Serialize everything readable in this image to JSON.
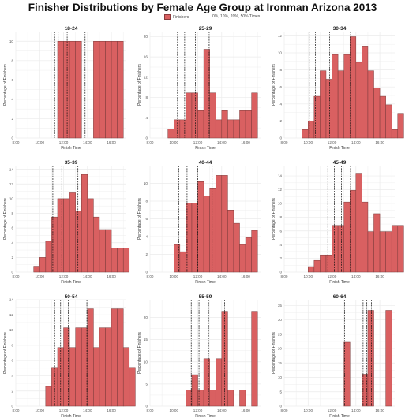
{
  "title": "Finisher Distributions by Female Age Group at Ironman Arizona 2013",
  "legend": {
    "finishers_label": "Finishers",
    "times_label": "0%, 10%, 20%, 50% Times"
  },
  "colors": {
    "bar_fill": "#d96061",
    "bar_stroke": "#7a3a3a",
    "vline": "#111111",
    "grid": "#ebebeb"
  },
  "chart_data": [
    {
      "type": "bar",
      "title": "18-24",
      "xlabel": "Finish Time",
      "ylabel": "Percentage of Finishers",
      "xlim": [
        8,
        17.25
      ],
      "ylim": [
        0,
        11
      ],
      "x_ticks": [
        "8:00",
        "10:00",
        "12:00",
        "14:00",
        "16:00"
      ],
      "y_ticks": [
        0,
        2,
        4,
        6,
        8,
        10
      ],
      "bin_start": 8,
      "bin_width": 0.5,
      "values": [
        0,
        0,
        0,
        0,
        0,
        0,
        0,
        10,
        10,
        10,
        10,
        0,
        0,
        10,
        10,
        10,
        10,
        10
      ],
      "vlines": [
        11.25,
        11.55,
        12.3,
        13.8
      ]
    },
    {
      "type": "bar",
      "title": "25-29",
      "xlabel": "Finish Time",
      "ylabel": "Percentage of Finishers",
      "xlim": [
        8,
        17.25
      ],
      "ylim": [
        0,
        21
      ],
      "x_ticks": [
        "8:00",
        "10:00",
        "12:00",
        "14:00",
        "16:00"
      ],
      "y_ticks": [
        0,
        4,
        8,
        12,
        16,
        20
      ],
      "bin_start": 9.5,
      "bin_width": 0.5,
      "values": [
        1.8,
        3.6,
        3.6,
        8.9,
        8.9,
        5.4,
        17.5,
        8.9,
        3.6,
        5.4,
        3.6,
        3.6,
        5.4,
        5.4,
        8.9
      ],
      "vlines": [
        10.3,
        10.9,
        11.8,
        12.95
      ]
    },
    {
      "type": "bar",
      "title": "30-34",
      "xlabel": "Finish Time",
      "ylabel": "Percentage of Finishers",
      "xlim": [
        8,
        17.25
      ],
      "ylim": [
        0,
        12.5
      ],
      "x_ticks": [
        "8:00",
        "10:00",
        "12:00",
        "14:00",
        "16:00"
      ],
      "y_ticks": [
        0,
        2,
        4,
        6,
        8,
        10,
        12
      ],
      "bin_start": 9.5,
      "bin_width": 0.5,
      "values": [
        1.0,
        2.0,
        4.9,
        7.9,
        6.9,
        9.8,
        7.9,
        9.8,
        11.9,
        8.9,
        10.8,
        7.9,
        5.9,
        4.9,
        3.9,
        1.0,
        2.9
      ],
      "vlines": [
        10.1,
        10.6,
        11.8,
        13.55
      ]
    },
    {
      "type": "bar",
      "title": "35-39",
      "xlabel": "Finish Time",
      "ylabel": "Percentage of Finishers",
      "xlim": [
        8,
        17.25
      ],
      "ylim": [
        0,
        14.5
      ],
      "x_ticks": [
        "8:00",
        "10:00",
        "12:00",
        "14:00",
        "16:00"
      ],
      "y_ticks": [
        0,
        2,
        4,
        6,
        8,
        10,
        12,
        14
      ],
      "bin_start": 9.5,
      "bin_width": 0.5,
      "values": [
        0.8,
        2.0,
        4.2,
        7.5,
        10.0,
        10.0,
        10.8,
        8.3,
        13.3,
        10.0,
        7.5,
        5.8,
        5.8,
        3.3,
        3.3,
        3.3
      ],
      "vlines": [
        10.6,
        11.1,
        11.85,
        13.2
      ]
    },
    {
      "type": "bar",
      "title": "40-44",
      "xlabel": "Finish Time",
      "ylabel": "Percentage of Finishers",
      "xlim": [
        8,
        17.25
      ],
      "ylim": [
        0,
        12
      ],
      "x_ticks": [
        "8:00",
        "10:00",
        "12:00",
        "14:00",
        "16:00"
      ],
      "y_ticks": [
        0,
        2,
        4,
        6,
        8,
        10
      ],
      "bin_start": 10,
      "bin_width": 0.5,
      "values": [
        3.1,
        2.3,
        7.8,
        7.8,
        10.2,
        8.6,
        9.4,
        10.9,
        10.9,
        7.0,
        5.5,
        3.1,
        3.9,
        4.7
      ],
      "vlines": [
        10.4,
        11.1,
        12.0,
        13.2
      ]
    },
    {
      "type": "bar",
      "title": "45-49",
      "xlabel": "Finish Time",
      "ylabel": "Percentage of Finishers",
      "xlim": [
        8,
        17.25
      ],
      "ylim": [
        0,
        15.5
      ],
      "x_ticks": [
        "8:00",
        "10:00",
        "12:00",
        "14:00",
        "16:00"
      ],
      "y_ticks": [
        0,
        2,
        4,
        6,
        8,
        10,
        12,
        14
      ],
      "bin_start": 10,
      "bin_width": 0.5,
      "values": [
        0.8,
        1.7,
        2.5,
        2.5,
        6.8,
        6.8,
        10.2,
        11.9,
        14.4,
        10.2,
        5.9,
        8.5,
        5.9,
        5.9,
        6.8,
        6.8
      ],
      "vlines": [
        11.65,
        12.2,
        12.8,
        13.55
      ]
    },
    {
      "type": "bar",
      "title": "50-54",
      "xlabel": "Finish Time",
      "ylabel": "Percentage of Finishers",
      "xlim": [
        8,
        17.25
      ],
      "ylim": [
        0,
        14
      ],
      "x_ticks": [
        "8:00",
        "10:00",
        "12:00",
        "14:00",
        "16:00"
      ],
      "y_ticks": [
        0,
        2,
        4,
        6,
        8,
        10,
        12,
        14
      ],
      "bin_start": 10.5,
      "bin_width": 0.5,
      "values": [
        2.6,
        5.1,
        7.7,
        10.3,
        7.7,
        10.3,
        10.3,
        12.8,
        7.7,
        10.3,
        10.3,
        12.8,
        12.8,
        7.7,
        5.1
      ],
      "vlines": [
        11.25,
        11.75,
        12.4,
        13.95
      ]
    },
    {
      "type": "bar",
      "title": "55-59",
      "xlabel": "Finish Time",
      "ylabel": "Percentage of Finishers",
      "xlim": [
        8,
        17.25
      ],
      "ylim": [
        0,
        24
      ],
      "x_ticks": [
        "8:00",
        "10:00",
        "12:00",
        "14:00",
        "16:00"
      ],
      "y_ticks": [
        0,
        5,
        10,
        15,
        20
      ],
      "bin_start": 11,
      "bin_width": 0.5,
      "values": [
        3.6,
        7.1,
        3.6,
        10.7,
        3.6,
        10.7,
        21.4,
        3.6,
        0,
        3.6,
        0,
        21.4
      ],
      "vlines": [
        11.45,
        12.1,
        12.9,
        14.25
      ]
    },
    {
      "type": "bar",
      "title": "60-64",
      "xlabel": "Finish Time",
      "ylabel": "Percentage of Finishers",
      "xlim": [
        8,
        17.25
      ],
      "ylim": [
        0,
        37
      ],
      "x_ticks": [
        "8:00",
        "10:00",
        "12:00",
        "14:00",
        "16:00"
      ],
      "y_ticks": [
        0,
        5,
        10,
        15,
        20,
        25,
        30,
        35
      ],
      "bin_start": 13,
      "bin_width": 0.5,
      "values": [
        22.2,
        0,
        0,
        11.1,
        33.3,
        0,
        0,
        33.3
      ],
      "vlines": [
        13.05,
        14.6,
        14.9,
        15.3
      ]
    }
  ]
}
